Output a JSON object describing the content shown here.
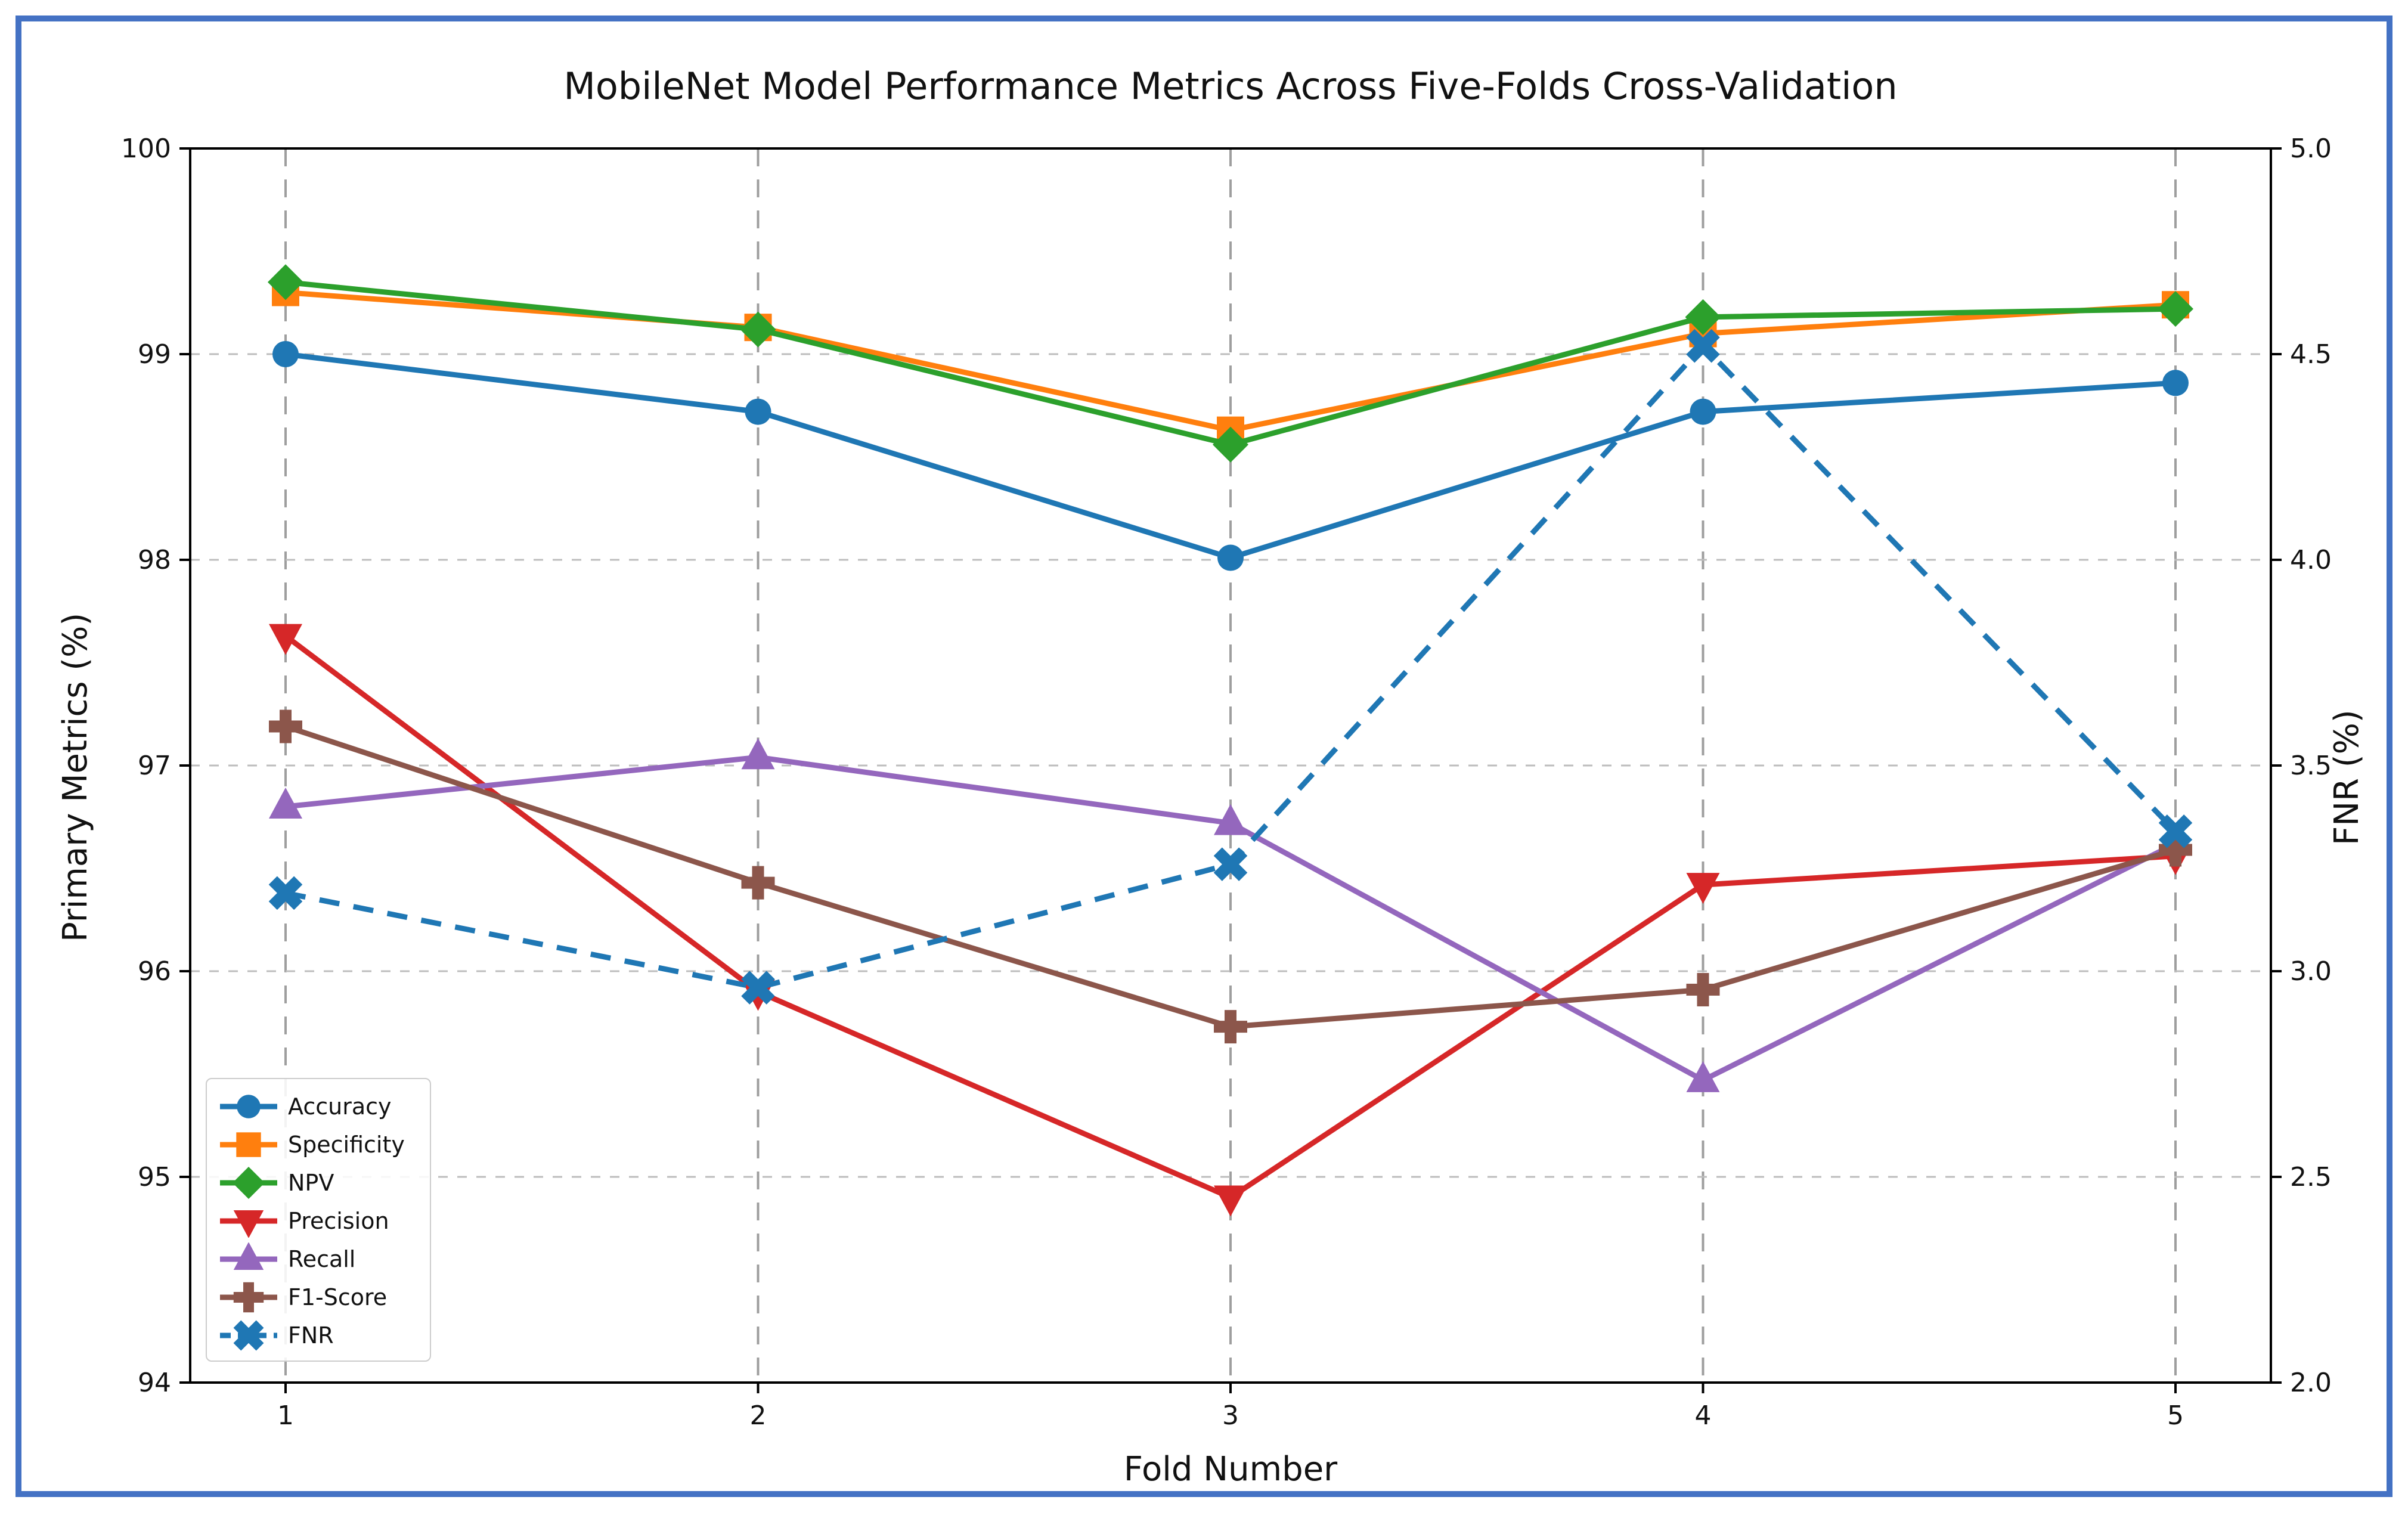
{
  "frame": {
    "border_color": "#4472c4",
    "background": "#ffffff"
  },
  "chart_data": {
    "type": "line",
    "title": "MobileNet Model Performance Metrics Across Five-Folds Cross-Validation",
    "xlabel": "Fold Number",
    "ylabel_left": "Primary Metrics (%)",
    "ylabel_right": "FNR (%)",
    "x": [
      1,
      2,
      3,
      4,
      5
    ],
    "xtick_labels": [
      "1",
      "2",
      "3",
      "4",
      "5"
    ],
    "ylim_left": [
      94,
      100
    ],
    "ylim_right": [
      2.0,
      5.0
    ],
    "ytick_labels_left": [
      "94",
      "95",
      "96",
      "97",
      "98",
      "99",
      "100"
    ],
    "ytick_labels_right": [
      "2.0",
      "2.5",
      "3.0",
      "3.5",
      "4.0",
      "4.5",
      "5.0"
    ],
    "grid": true,
    "legend_position": "lower-left",
    "series": [
      {
        "name": "Accuracy",
        "axis": "left",
        "color": "#1f77b4",
        "marker": "circle",
        "line": "solid",
        "values": [
          99.0,
          98.72,
          98.01,
          98.72,
          98.86
        ]
      },
      {
        "name": "Specificity",
        "axis": "left",
        "color": "#ff7f0e",
        "marker": "square",
        "line": "solid",
        "values": [
          99.3,
          99.13,
          98.63,
          99.1,
          99.24
        ]
      },
      {
        "name": "NPV",
        "axis": "left",
        "color": "#2ca02c",
        "marker": "diamond",
        "line": "solid",
        "values": [
          99.35,
          99.12,
          98.56,
          99.18,
          99.22
        ]
      },
      {
        "name": "Precision",
        "axis": "left",
        "color": "#d62728",
        "marker": "triangle-down",
        "line": "solid",
        "values": [
          97.63,
          95.9,
          94.9,
          96.42,
          96.56
        ]
      },
      {
        "name": "Recall",
        "axis": "left",
        "color": "#9467bd",
        "marker": "triangle-up",
        "line": "solid",
        "values": [
          96.8,
          97.04,
          96.72,
          95.47,
          96.62
        ]
      },
      {
        "name": "F1-Score",
        "axis": "left",
        "color": "#8c564b",
        "marker": "plus",
        "line": "solid",
        "values": [
          97.19,
          96.43,
          95.73,
          95.91,
          96.59
        ]
      },
      {
        "name": "FNR",
        "axis": "right",
        "color": "#1f77b4",
        "marker": "x",
        "line": "dashed",
        "values": [
          3.19,
          2.96,
          3.26,
          4.52,
          3.34
        ]
      }
    ]
  }
}
